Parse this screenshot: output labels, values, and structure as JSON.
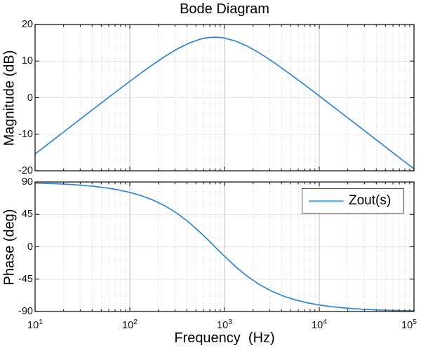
{
  "chart_data": {
    "type": "line",
    "title": "Bode Diagram",
    "xlabel": "Frequency  (Hz)",
    "x_scale": "log",
    "x_range_hz": [
      10,
      100000
    ],
    "x_tick_base": "10",
    "x_tick_exponents": [
      1,
      2,
      3,
      4,
      5
    ],
    "grid": true,
    "line_color": "#3584C6",
    "legend_sample_color": "#85B9DB",
    "legend": {
      "label": "Zout(s)",
      "position": "top-right of phase subplot"
    },
    "subplots": [
      {
        "name": "magnitude",
        "ylabel": "Magnitude (dB)",
        "ylim": [
          -20,
          20
        ],
        "yticks": [
          20,
          10,
          0,
          -10,
          -20
        ]
      },
      {
        "name": "phase",
        "ylabel": "Phase (deg)",
        "ylim": [
          -90,
          90
        ],
        "yticks": [
          90,
          45,
          0,
          -45,
          -90
        ]
      }
    ],
    "observed_features": {
      "resonant_peak_db": 16.5,
      "resonant_peak_hz": 790,
      "magnitude_slope_low": "+20 dB/decade",
      "magnitude_slope_high": "-20 dB/decade",
      "phase_low_freq_deg": 90,
      "phase_high_freq_deg": -90
    },
    "series": [
      {
        "name": "Zout(s)",
        "freq_hz": [
          10,
          13.34,
          17.78,
          23.71,
          31.62,
          42.17,
          56.23,
          74.99,
          100,
          133.4,
          177.8,
          237.1,
          316.2,
          421.7,
          562.3,
          649.4,
          749.9,
          866.0,
          1000,
          1333,
          1778,
          2371,
          3162,
          4217,
          5623,
          7499,
          10000,
          13335,
          17783,
          23714,
          31623,
          42170,
          56234,
          74989,
          100000
        ],
        "magnitude_db": [
          -15.41,
          -12.91,
          -10.42,
          -7.92,
          -5.42,
          -2.93,
          -0.45,
          2.01,
          4.45,
          6.85,
          9.16,
          11.34,
          13.3,
          14.91,
          16.03,
          16.36,
          16.51,
          16.49,
          16.29,
          15.39,
          13.94,
          12.1,
          9.98,
          7.71,
          5.35,
          2.92,
          0.46,
          -2.02,
          -4.5,
          -6.99,
          -9.49,
          -11.99,
          -14.49,
          -16.99,
          -19.49
        ],
        "phase_deg": [
          88.55,
          88.07,
          87.42,
          86.56,
          85.41,
          83.89,
          81.86,
          79.15,
          75.57,
          70.83,
          64.64,
          56.59,
          46.37,
          33.83,
          19.15,
          11.2,
          3.05,
          -5.19,
          -13.3,
          -28.63,
          -42.01,
          -53.08,
          -61.89,
          -68.74,
          -73.97,
          -77.94,
          -80.94,
          -83.2,
          -84.9,
          -86.17,
          -87.13,
          -87.85,
          -88.39,
          -88.79,
          -89.09
        ]
      }
    ]
  }
}
